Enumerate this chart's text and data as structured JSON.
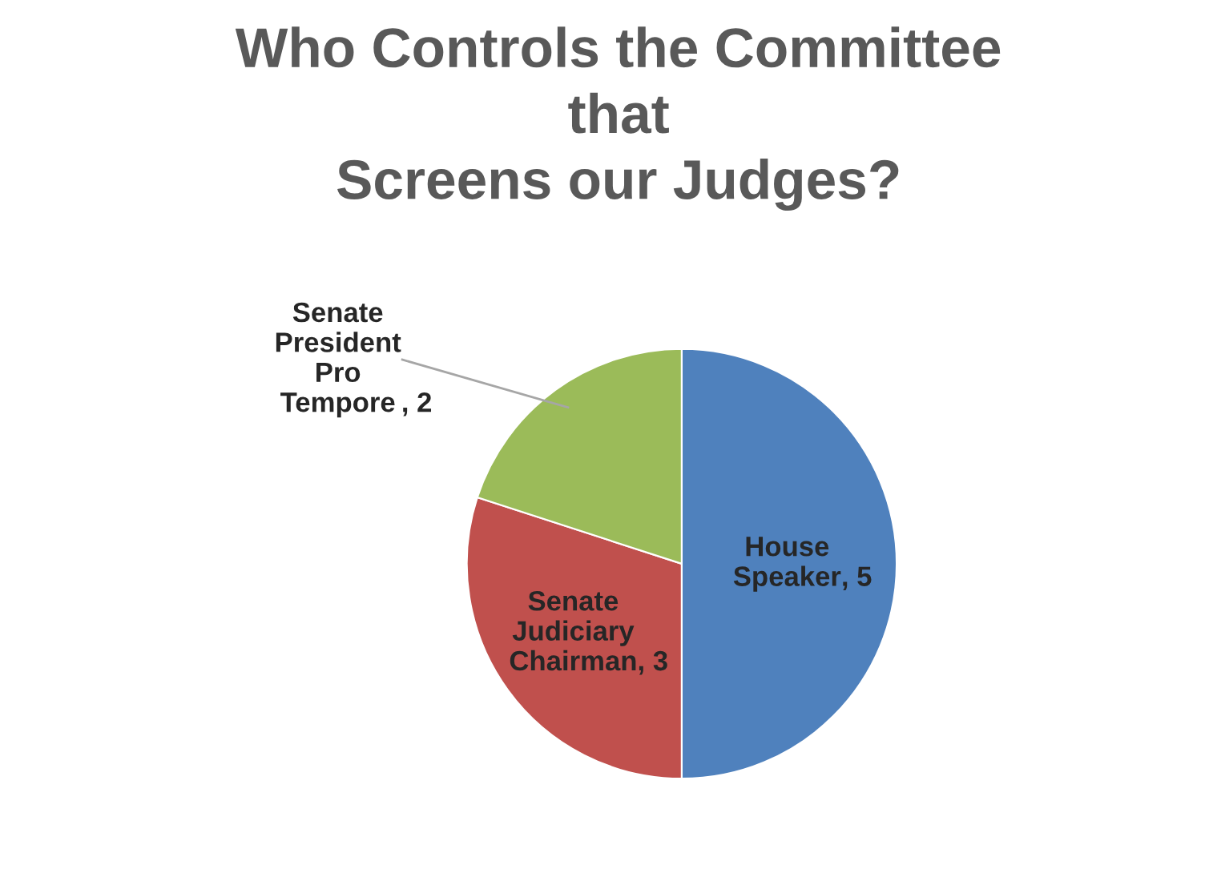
{
  "chart_data": {
    "type": "pie",
    "title": "Who Controls the Committee\nthat\nScreens our Judges?",
    "categories": [
      "House Speaker",
      "Senate Judiciary Chairman",
      "Senate President Pro Tempore"
    ],
    "values": [
      5,
      3,
      2
    ],
    "colors": [
      "#4f81bd",
      "#c0504d",
      "#9bbb59"
    ],
    "value_labels": [
      ", 5",
      ", 3",
      ", 2"
    ],
    "legend": false
  }
}
